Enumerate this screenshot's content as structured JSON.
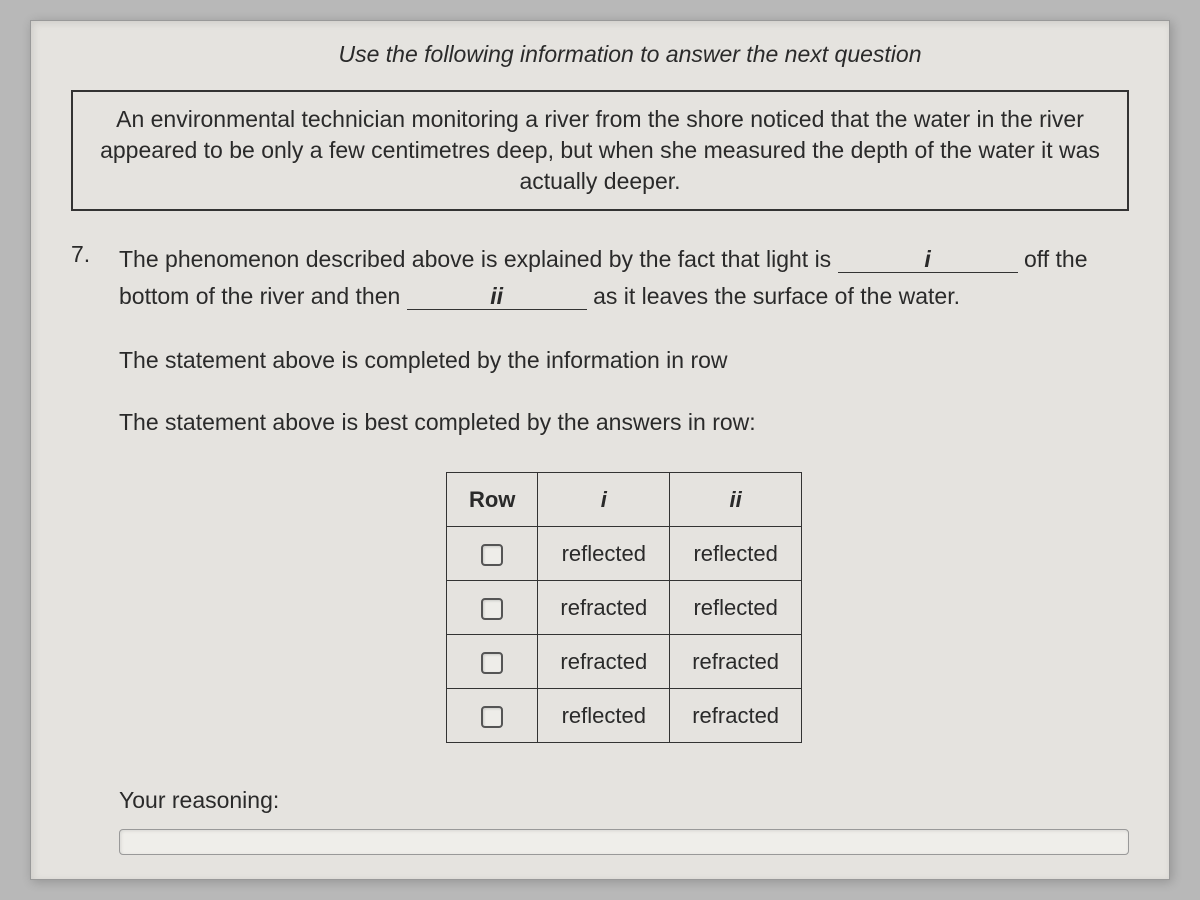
{
  "instruction_text": "Use the following information to answer the next question",
  "info_box_text": "An environmental technician monitoring a river from the shore noticed that the water in the river appeared to be only a few centimetres deep, but when she measured the depth of the water it was actually deeper.",
  "question_number": "7.",
  "question": {
    "part1": "The phenomenon described above is explained by the fact that light is ",
    "blank1": "i",
    "part2": " off the bottom of the river and then ",
    "blank2": "ii",
    "part3": " as it leaves the surface of the water."
  },
  "statement1": "The statement above is completed by the information in row",
  "statement2": "The statement above is best completed by the answers in row:",
  "table": {
    "headers": [
      "Row",
      "i",
      "ii"
    ],
    "rows": [
      {
        "col_i": "reflected",
        "col_ii": "reflected"
      },
      {
        "col_i": "refracted",
        "col_ii": "reflected"
      },
      {
        "col_i": "refracted",
        "col_ii": "refracted"
      },
      {
        "col_i": "reflected",
        "col_ii": "refracted"
      }
    ]
  },
  "reasoning_label": "Your reasoning:",
  "colors": {
    "page_bg": "#e5e3df",
    "outer_bg": "#b8b8b8",
    "text": "#2a2a2a",
    "border": "#333333"
  },
  "fonts": {
    "body_size": 23,
    "table_size": 22
  }
}
